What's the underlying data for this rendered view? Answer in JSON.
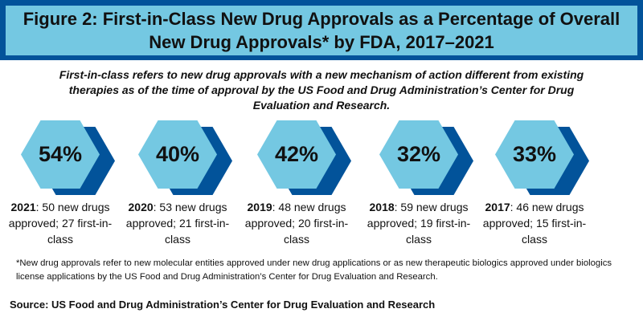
{
  "title": "Figure 2: First-in-Class New Drug Approvals as a Percentage of Overall New Drug Approvals* by FDA, 2017–2021",
  "intro": "First-in-class refers to new drug approvals with a new mechanism of action different from existing therapies as of the time of approval by the US Food and Drug Administration’s Center for Drug Evaluation and Research.",
  "stats": [
    {
      "percent": "54%",
      "year": "2021",
      "text": ": 50 new drugs approved; 27 first-in-class"
    },
    {
      "percent": "40%",
      "year": "2020",
      "text": ": 53 new drugs approved; 21 first-in-class"
    },
    {
      "percent": "42%",
      "year": "2019",
      "text": ": 48 new drugs approved; 20 first-in-class"
    },
    {
      "percent": "32%",
      "year": "2018",
      "text": ": 59 new drugs approved; 19 first-in-class"
    },
    {
      "percent": "33%",
      "year": "2017",
      "text": ": 46 new drugs approved; 15 first-in-class"
    }
  ],
  "footnote": "*New drug approvals refer to new molecular entities approved under new drug applications or as new therapeutic biologics approved under biologics license applications by the US Food and Drug Administration’s Center for Drug Evaluation and Research.",
  "source": "Source: US Food and Drug Administration’s Center for Drug Evaluation and Research",
  "colors": {
    "dark_blue": "#02539a",
    "light_blue": "#74c8e2"
  }
}
